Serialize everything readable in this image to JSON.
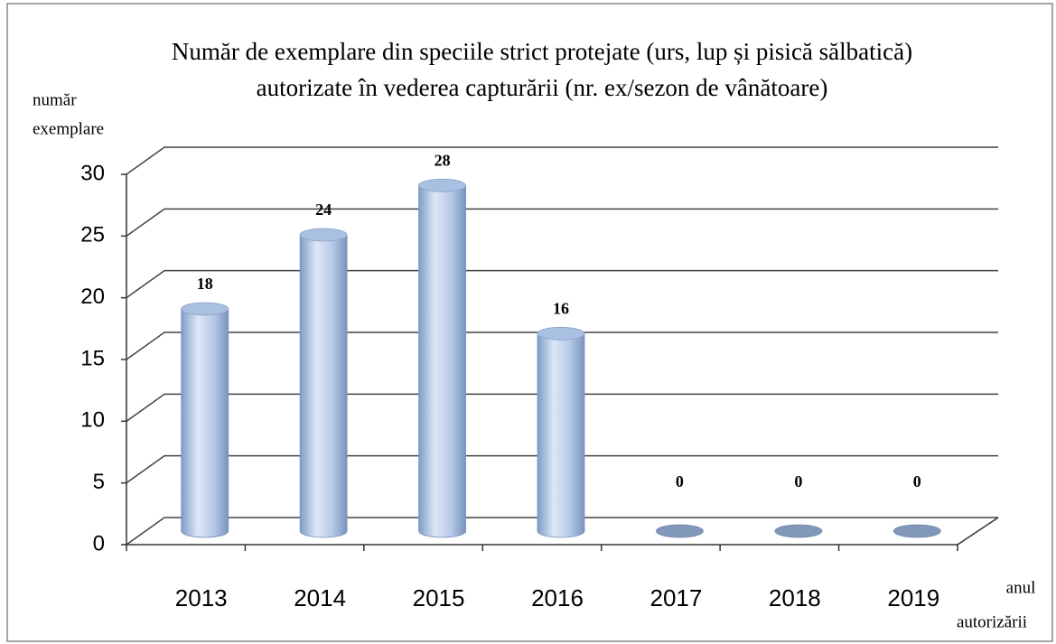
{
  "chart_data": {
    "type": "bar3d",
    "title": [
      "Număr de exemplare din speciile strict protejate (urs, lup și pisică sălbatică)",
      "autorizate în vederea capturării (nr. ex/sezon de vânătoare)"
    ],
    "y_label": [
      "număr",
      "exemplare"
    ],
    "x_label": [
      "anul",
      "autorizării"
    ],
    "categories": [
      "2013",
      "2014",
      "2015",
      "2016",
      "2017",
      "2018",
      "2019"
    ],
    "values": [
      18,
      24,
      28,
      16,
      0,
      0,
      0
    ],
    "color": "#a9c0e2",
    "ylim": [
      0,
      30
    ],
    "yticks": [
      0,
      5,
      10,
      15,
      20,
      25,
      30
    ],
    "grid": true
  }
}
